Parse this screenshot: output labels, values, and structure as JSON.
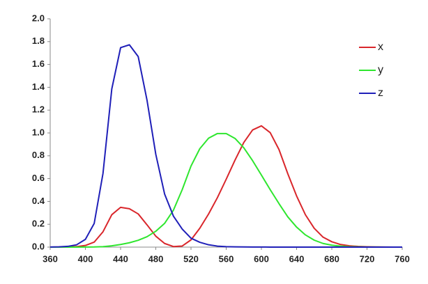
{
  "chart_data": {
    "type": "line",
    "x": [
      360,
      370,
      380,
      390,
      400,
      410,
      420,
      430,
      440,
      450,
      460,
      470,
      480,
      490,
      500,
      510,
      520,
      530,
      540,
      550,
      560,
      570,
      580,
      590,
      600,
      610,
      620,
      630,
      640,
      650,
      660,
      670,
      680,
      690,
      700,
      710,
      720,
      730,
      740,
      750,
      760
    ],
    "series": [
      {
        "name": "x",
        "color": "#d9262b",
        "values": [
          0.0001,
          0.0004,
          0.0014,
          0.0042,
          0.0143,
          0.0435,
          0.1344,
          0.2839,
          0.3483,
          0.3362,
          0.2908,
          0.1954,
          0.0956,
          0.032,
          0.0049,
          0.0093,
          0.0633,
          0.1655,
          0.2904,
          0.4334,
          0.5945,
          0.7621,
          0.9163,
          1.0263,
          1.0622,
          1.0026,
          0.8544,
          0.6424,
          0.4479,
          0.2835,
          0.1649,
          0.0874,
          0.0468,
          0.0227,
          0.0114,
          0.0058,
          0.0029,
          0.0014,
          0.0007,
          0.0003,
          0.0002
        ]
      },
      {
        "name": "y",
        "color": "#2ee62e",
        "values": [
          0,
          0,
          0,
          0.0001,
          0.0004,
          0.0012,
          0.004,
          0.0116,
          0.023,
          0.038,
          0.06,
          0.091,
          0.139,
          0.208,
          0.323,
          0.503,
          0.71,
          0.862,
          0.954,
          0.995,
          0.995,
          0.952,
          0.87,
          0.757,
          0.631,
          0.503,
          0.381,
          0.265,
          0.175,
          0.107,
          0.061,
          0.032,
          0.017,
          0.0082,
          0.0041,
          0.0021,
          0.001,
          0.0005,
          0.0002,
          0.0001,
          0.0001
        ]
      },
      {
        "name": "z",
        "color": "#1f1fb8",
        "values": [
          0.0006,
          0.002,
          0.0065,
          0.0201,
          0.0679,
          0.2074,
          0.6456,
          1.3856,
          1.7471,
          1.7721,
          1.6692,
          1.2876,
          0.813,
          0.4652,
          0.272,
          0.1582,
          0.0782,
          0.0422,
          0.0203,
          0.0087,
          0.0039,
          0.0021,
          0.0017,
          0.0011,
          0.0008,
          0.0003,
          0.0002,
          0,
          0,
          0,
          0,
          0,
          0,
          0,
          0,
          0,
          0,
          0,
          0,
          0,
          0
        ]
      }
    ],
    "xlim": [
      360,
      760
    ],
    "ylim": [
      0,
      2
    ],
    "xticks": [
      360,
      400,
      440,
      480,
      520,
      560,
      600,
      640,
      680,
      720,
      760
    ],
    "yticks": [
      {
        "value": 0,
        "label": "0.0"
      },
      0.2,
      0.4,
      0.6,
      0.8,
      {
        "value": 1,
        "label": "1.0"
      },
      1.2,
      1.4,
      1.6,
      1.8,
      {
        "value": 2,
        "label": "2.0"
      }
    ],
    "legend": "top-right"
  }
}
